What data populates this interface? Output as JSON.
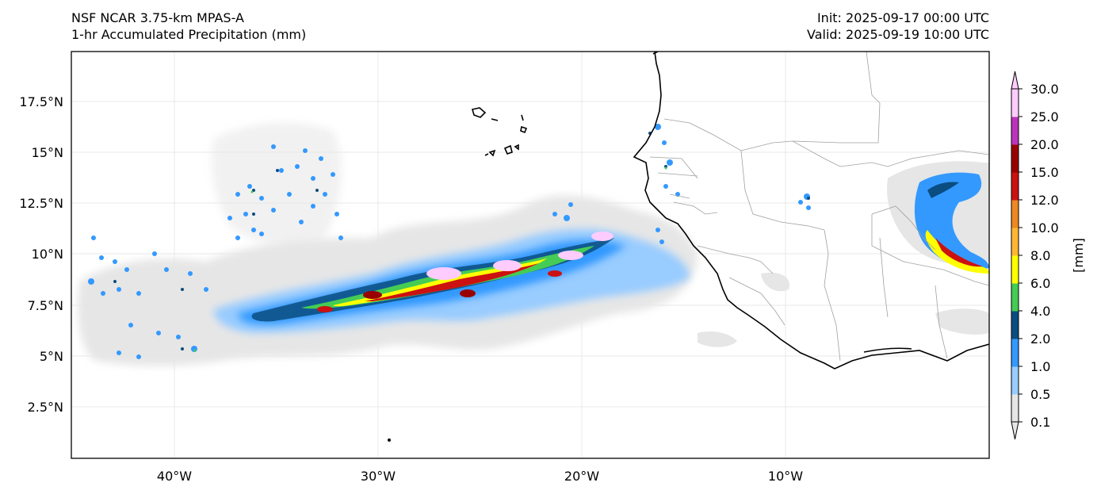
{
  "header": {
    "model": "NSF NCAR 3.75-km MPAS-A",
    "field": "1-hr Accumulated Precipitation (mm)",
    "init": "Init: 2025-09-17 00:00 UTC",
    "valid": "Valid: 2025-09-19 10:00 UTC"
  },
  "axes": {
    "lon_labels": [
      "40°W",
      "30°W",
      "20°W",
      "10°W"
    ],
    "lat_labels": [
      "17.5°N",
      "15°N",
      "12.5°N",
      "10°N",
      "7.5°N",
      "5°N",
      "2.5°N"
    ]
  },
  "colorbar": {
    "unit_label": "[mm]",
    "levels": [
      "0.1",
      "0.5",
      "1.0",
      "2.0",
      "4.0",
      "6.0",
      "8.0",
      "10.0",
      "12.0",
      "15.0",
      "20.0",
      "25.0",
      "30.0"
    ],
    "colors": [
      "#e6e6e6",
      "#99ccff",
      "#3399ff",
      "#0a4d80",
      "#44cc55",
      "#ffff00",
      "#ffb733",
      "#ee8822",
      "#cc1111",
      "#990000",
      "#bb33bb",
      "#ffccff"
    ]
  }
}
